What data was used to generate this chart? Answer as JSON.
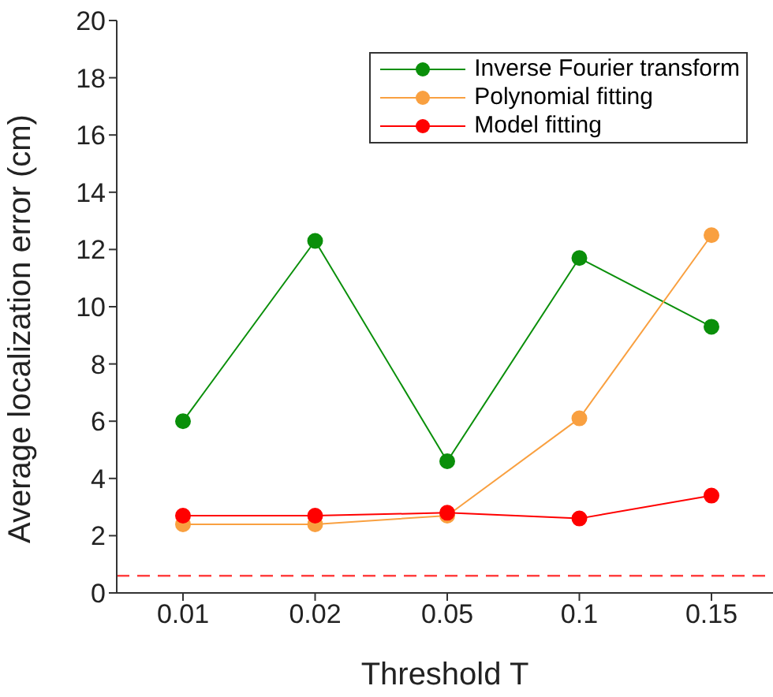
{
  "chart_data": {
    "type": "line",
    "xlabel": "Threshold T",
    "ylabel": "Average localization error (cm)",
    "categories": [
      "0.01",
      "0.02",
      "0.05",
      "0.1",
      "0.15"
    ],
    "series": [
      {
        "name": "Inverse Fourier transform",
        "color": "#0a8f0a",
        "values": [
          6.0,
          12.3,
          4.6,
          11.7,
          9.3
        ]
      },
      {
        "name": "Polynomial fitting",
        "color": "#f9a040",
        "values": [
          2.4,
          2.4,
          2.7,
          6.1,
          12.5
        ]
      },
      {
        "name": "Model fitting",
        "color": "#ff0000",
        "values": [
          2.7,
          2.7,
          2.8,
          2.6,
          3.4
        ]
      }
    ],
    "ylim": [
      0,
      20
    ],
    "yticks": [
      0,
      2,
      4,
      6,
      8,
      10,
      12,
      14,
      16,
      18,
      20
    ],
    "ref_lines": [
      {
        "axis": "y",
        "value": 0.6,
        "color": "#ff4040",
        "line_style": "dashed"
      }
    ],
    "grid": false,
    "legend": "top right",
    "marker": "circle",
    "line_style": "solid"
  }
}
